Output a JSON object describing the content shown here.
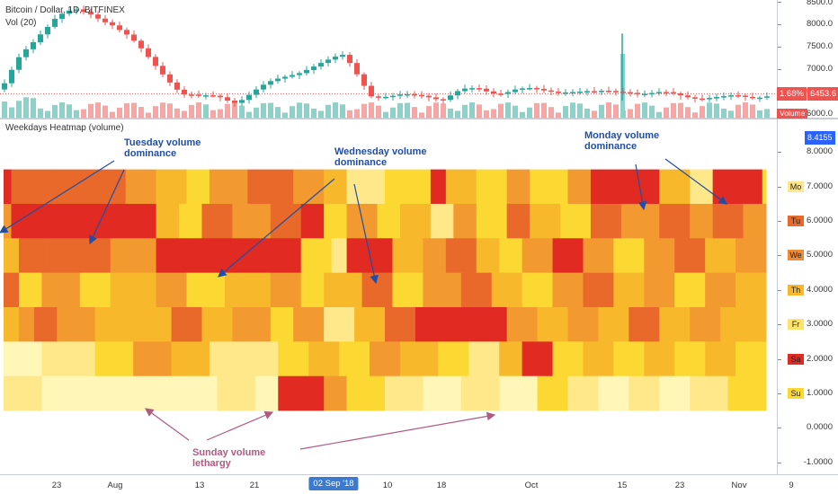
{
  "header": {
    "symbol_line": "Bitcoin / Dollar, 1D, BITFINEX",
    "volume_legend": "Vol (20)"
  },
  "indicator": {
    "name": "Weekdays Heatmap (volume)"
  },
  "price_axis": {
    "ticks": [
      "8500.0",
      "8000.0",
      "7500.0",
      "7000.0",
      "6500.0",
      "6000.0"
    ],
    "tick_values": [
      8500,
      8000,
      7500,
      7000,
      6500,
      6000
    ],
    "range": [
      5920,
      8550
    ],
    "percent_tag": "1.68%",
    "price_tag": "6453.6",
    "price_tag_value": 6453.6,
    "volume_tag": "Volume"
  },
  "heat_axis": {
    "ticks": [
      "8.0000",
      "7.0000",
      "6.0000",
      "5.0000",
      "4.0000",
      "3.0000",
      "2.0000",
      "1.0000",
      "0.0000",
      "-1.0000"
    ],
    "tick_values": [
      8,
      7,
      6,
      5,
      4,
      3,
      2,
      1,
      0,
      -1
    ],
    "range": [
      -1.35,
      8.95
    ],
    "top_tag": "8.4155",
    "top_tag_value": 8.4155
  },
  "day_tags": [
    {
      "label": "Mo",
      "value": 7,
      "color": "#ffe68a"
    },
    {
      "label": "Tu",
      "value": 6,
      "color": "#e8692a"
    },
    {
      "label": "We",
      "value": 5,
      "color": "#f08a33"
    },
    {
      "label": "Th",
      "value": 4,
      "color": "#f7b92b"
    },
    {
      "label": "Fr",
      "value": 3,
      "color": "#ffe36b"
    },
    {
      "label": "Sa",
      "value": 2,
      "color": "#e02a22"
    },
    {
      "label": "Su",
      "value": 1,
      "color": "#fbd832"
    }
  ],
  "time_axis": {
    "labels": [
      "23",
      "Aug",
      "13",
      "21",
      "10",
      "18",
      "Oct",
      "15",
      "23",
      "Nov",
      "9"
    ],
    "highlight": "02 Sep '18"
  },
  "annotations": {
    "tuesday": {
      "line1": "Tuesday volume",
      "line2": "dominance"
    },
    "wednesday": {
      "line1": "Wednesday volume",
      "line2": "dominance"
    },
    "monday": {
      "line1": "Monday volume",
      "line2": "dominance"
    },
    "sunday": {
      "line1": "Sunday volume",
      "line2": "lethargy"
    }
  },
  "colors": {
    "up": "#26a69a",
    "down": "#ef5350",
    "volume_up": "#8fd1c8",
    "volume_down": "#f4a7a5",
    "price_line": "#ef5350",
    "annotation_blue": "#1f4ea8",
    "annotation_pink": "#b05a82"
  },
  "chart_data": {
    "type": "heatmap",
    "title": "Weekdays Heatmap (volume)",
    "rows": [
      "Mo",
      "Tu",
      "We",
      "Th",
      "Fr",
      "Sa",
      "Su"
    ],
    "palette": [
      "#fff6b8",
      "#ffe88a",
      "#fbd832",
      "#f7b92b",
      "#f29a30",
      "#e8692a",
      "#e02a22"
    ],
    "segments": {
      "Mo": [
        [
          0,
          0.01,
          6
        ],
        [
          0.01,
          0.07,
          5
        ],
        [
          0.07,
          0.16,
          5
        ],
        [
          0.16,
          0.2,
          4
        ],
        [
          0.2,
          0.24,
          3
        ],
        [
          0.24,
          0.27,
          2
        ],
        [
          0.27,
          0.32,
          4
        ],
        [
          0.32,
          0.38,
          5
        ],
        [
          0.38,
          0.42,
          4
        ],
        [
          0.42,
          0.45,
          3
        ],
        [
          0.45,
          0.5,
          1
        ],
        [
          0.5,
          0.56,
          2
        ],
        [
          0.56,
          0.58,
          6
        ],
        [
          0.58,
          0.62,
          3
        ],
        [
          0.62,
          0.66,
          2
        ],
        [
          0.66,
          0.69,
          4
        ],
        [
          0.69,
          0.74,
          2
        ],
        [
          0.74,
          0.77,
          4
        ],
        [
          0.77,
          0.81,
          6
        ],
        [
          0.81,
          0.86,
          6
        ],
        [
          0.86,
          0.9,
          3
        ],
        [
          0.9,
          0.93,
          1
        ],
        [
          0.93,
          0.995,
          6
        ],
        [
          0.995,
          1,
          2
        ]
      ],
      "Tu": [
        [
          0,
          0.01,
          4
        ],
        [
          0.01,
          0.2,
          6
        ],
        [
          0.2,
          0.23,
          3
        ],
        [
          0.23,
          0.26,
          2
        ],
        [
          0.26,
          0.3,
          5
        ],
        [
          0.3,
          0.35,
          4
        ],
        [
          0.35,
          0.39,
          5
        ],
        [
          0.39,
          0.42,
          6
        ],
        [
          0.42,
          0.45,
          2
        ],
        [
          0.45,
          0.49,
          4
        ],
        [
          0.49,
          0.52,
          2
        ],
        [
          0.52,
          0.56,
          3
        ],
        [
          0.56,
          0.59,
          1
        ],
        [
          0.59,
          0.62,
          4
        ],
        [
          0.62,
          0.66,
          2
        ],
        [
          0.66,
          0.69,
          5
        ],
        [
          0.69,
          0.73,
          3
        ],
        [
          0.73,
          0.77,
          2
        ],
        [
          0.77,
          0.81,
          5
        ],
        [
          0.81,
          0.86,
          4
        ],
        [
          0.86,
          0.9,
          5
        ],
        [
          0.9,
          0.93,
          4
        ],
        [
          0.93,
          0.97,
          5
        ],
        [
          0.97,
          1,
          4
        ]
      ],
      "We": [
        [
          0,
          0.02,
          3
        ],
        [
          0.02,
          0.06,
          5
        ],
        [
          0.06,
          0.14,
          5
        ],
        [
          0.14,
          0.2,
          4
        ],
        [
          0.2,
          0.39,
          6
        ],
        [
          0.39,
          0.43,
          2
        ],
        [
          0.43,
          0.45,
          1
        ],
        [
          0.45,
          0.51,
          6
        ],
        [
          0.51,
          0.55,
          3
        ],
        [
          0.55,
          0.58,
          4
        ],
        [
          0.58,
          0.62,
          5
        ],
        [
          0.62,
          0.65,
          3
        ],
        [
          0.65,
          0.68,
          2
        ],
        [
          0.68,
          0.72,
          4
        ],
        [
          0.72,
          0.76,
          6
        ],
        [
          0.76,
          0.8,
          4
        ],
        [
          0.8,
          0.84,
          2
        ],
        [
          0.84,
          0.88,
          4
        ],
        [
          0.88,
          0.92,
          5
        ],
        [
          0.92,
          0.96,
          3
        ],
        [
          0.96,
          1,
          4
        ]
      ],
      "Th": [
        [
          0,
          0.02,
          5
        ],
        [
          0.02,
          0.05,
          2
        ],
        [
          0.05,
          0.1,
          4
        ],
        [
          0.1,
          0.14,
          2
        ],
        [
          0.14,
          0.2,
          3
        ],
        [
          0.2,
          0.24,
          4
        ],
        [
          0.24,
          0.29,
          2
        ],
        [
          0.29,
          0.35,
          3
        ],
        [
          0.35,
          0.39,
          4
        ],
        [
          0.39,
          0.42,
          2
        ],
        [
          0.42,
          0.47,
          3
        ],
        [
          0.47,
          0.51,
          5
        ],
        [
          0.51,
          0.55,
          2
        ],
        [
          0.55,
          0.6,
          4
        ],
        [
          0.6,
          0.64,
          5
        ],
        [
          0.64,
          0.68,
          3
        ],
        [
          0.68,
          0.72,
          2
        ],
        [
          0.72,
          0.76,
          4
        ],
        [
          0.76,
          0.8,
          5
        ],
        [
          0.8,
          0.84,
          3
        ],
        [
          0.84,
          0.88,
          4
        ],
        [
          0.88,
          0.92,
          2
        ],
        [
          0.92,
          0.96,
          4
        ],
        [
          0.96,
          1,
          3
        ]
      ],
      "Fr": [
        [
          0,
          0.02,
          3
        ],
        [
          0.02,
          0.04,
          4
        ],
        [
          0.04,
          0.07,
          5
        ],
        [
          0.07,
          0.12,
          4
        ],
        [
          0.12,
          0.18,
          3
        ],
        [
          0.18,
          0.22,
          3
        ],
        [
          0.22,
          0.26,
          5
        ],
        [
          0.26,
          0.3,
          3
        ],
        [
          0.3,
          0.35,
          4
        ],
        [
          0.35,
          0.38,
          2
        ],
        [
          0.38,
          0.42,
          4
        ],
        [
          0.42,
          0.46,
          1
        ],
        [
          0.46,
          0.5,
          3
        ],
        [
          0.5,
          0.54,
          5
        ],
        [
          0.54,
          0.6,
          6
        ],
        [
          0.6,
          0.66,
          6
        ],
        [
          0.66,
          0.7,
          4
        ],
        [
          0.7,
          0.74,
          3
        ],
        [
          0.74,
          0.78,
          4
        ],
        [
          0.78,
          0.82,
          3
        ],
        [
          0.82,
          0.86,
          5
        ],
        [
          0.86,
          0.9,
          3
        ],
        [
          0.9,
          0.94,
          4
        ],
        [
          0.94,
          1,
          3
        ]
      ],
      "Sa": [
        [
          0,
          0.05,
          0
        ],
        [
          0.05,
          0.12,
          1
        ],
        [
          0.12,
          0.17,
          2
        ],
        [
          0.17,
          0.22,
          4
        ],
        [
          0.22,
          0.27,
          3
        ],
        [
          0.27,
          0.31,
          1
        ],
        [
          0.31,
          0.36,
          1
        ],
        [
          0.36,
          0.4,
          2
        ],
        [
          0.4,
          0.44,
          3
        ],
        [
          0.44,
          0.48,
          2
        ],
        [
          0.48,
          0.52,
          4
        ],
        [
          0.52,
          0.57,
          3
        ],
        [
          0.57,
          0.61,
          2
        ],
        [
          0.61,
          0.65,
          1
        ],
        [
          0.65,
          0.68,
          3
        ],
        [
          0.68,
          0.72,
          6
        ],
        [
          0.72,
          0.76,
          2
        ],
        [
          0.76,
          0.8,
          3
        ],
        [
          0.8,
          0.84,
          2
        ],
        [
          0.84,
          0.88,
          3
        ],
        [
          0.88,
          0.92,
          2
        ],
        [
          0.92,
          0.96,
          3
        ],
        [
          0.96,
          1,
          2
        ]
      ],
      "Su": [
        [
          0,
          0.05,
          1
        ],
        [
          0.05,
          0.12,
          0
        ],
        [
          0.12,
          0.2,
          0
        ],
        [
          0.2,
          0.28,
          0
        ],
        [
          0.28,
          0.33,
          1
        ],
        [
          0.33,
          0.36,
          0
        ],
        [
          0.36,
          0.42,
          6
        ],
        [
          0.42,
          0.45,
          4
        ],
        [
          0.45,
          0.5,
          2
        ],
        [
          0.5,
          0.55,
          1
        ],
        [
          0.55,
          0.6,
          0
        ],
        [
          0.6,
          0.65,
          1
        ],
        [
          0.65,
          0.7,
          0
        ],
        [
          0.7,
          0.74,
          2
        ],
        [
          0.74,
          0.78,
          1
        ],
        [
          0.78,
          0.82,
          0
        ],
        [
          0.82,
          0.86,
          1
        ],
        [
          0.86,
          0.9,
          0
        ],
        [
          0.9,
          0.95,
          1
        ],
        [
          0.95,
          1,
          2
        ]
      ]
    },
    "xlabel": "",
    "ylabel": "",
    "ylim": [
      -1,
      8
    ],
    "legend": "right",
    "grid": false
  }
}
